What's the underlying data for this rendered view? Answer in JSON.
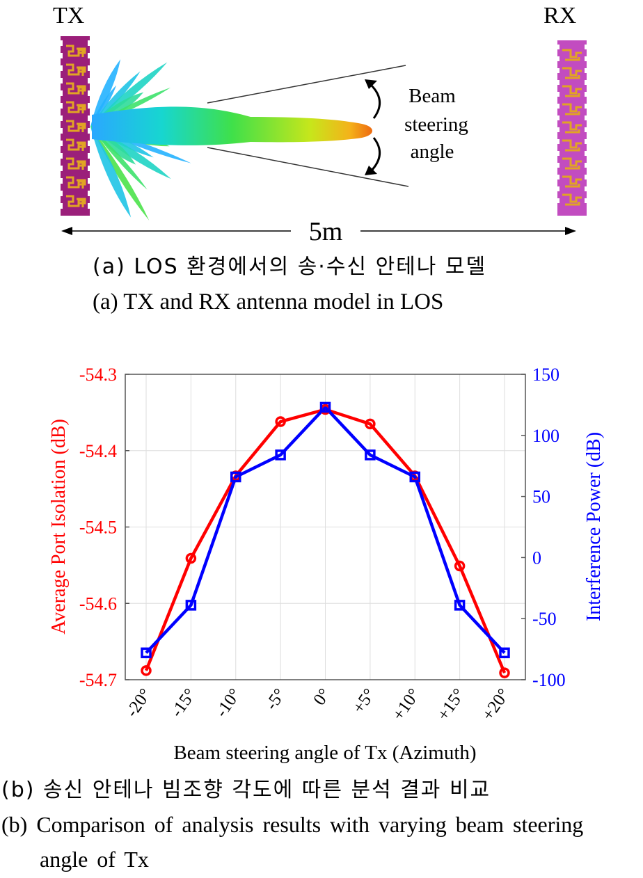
{
  "diagram": {
    "tx_label": "TX",
    "rx_label": "RX",
    "beam_label_lines": [
      "Beam",
      "steering",
      "angle"
    ],
    "distance_label": "5m"
  },
  "captions": {
    "a_ko": "(a) LOS 환경에서의 송·수신 안테나 모델",
    "a_en": "(a) TX and RX antenna model in LOS",
    "b_ko": "(b) 송신 안테나 빔조향 각도에 따른 분석 결과 비교",
    "b_en_line1": "(b) Comparison of analysis results with varying beam steering",
    "b_en_line2": "angle of Tx"
  },
  "colors": {
    "left_series": "#ff0000",
    "right_series": "#0000ff",
    "grid": "#dedede",
    "tx_board": "#9b1f7a",
    "rx_board": "#c24cc0",
    "trace": "#e1a424"
  },
  "chart_data": {
    "type": "line",
    "categories": [
      "-20°",
      "-15°",
      "-10°",
      "-5°",
      "0°",
      "+5°",
      "+10°",
      "+15°",
      "+20°"
    ],
    "xlabel": "Beam steering angle of Tx (Azimuth)",
    "y_left": {
      "label": "Average Port Isolation (dB)",
      "lim": [
        -54.7,
        -54.3
      ],
      "ticks": [
        "-54.3",
        "-54.4",
        "-54.5",
        "-54.6",
        "-54.7"
      ],
      "tick_values": [
        -54.3,
        -54.4,
        -54.5,
        -54.6,
        -54.7
      ]
    },
    "y_right": {
      "label": "Interference Power (dB)",
      "lim": [
        -100,
        150
      ],
      "ticks": [
        "150",
        "100",
        "50",
        "0",
        "-50",
        "-100"
      ],
      "tick_values": [
        150,
        100,
        50,
        0,
        -50,
        -100
      ]
    },
    "grid": true,
    "series": [
      {
        "axis": "left",
        "marker": "circle",
        "color": "#ff0000",
        "values": [
          -54.688,
          -54.541,
          -54.433,
          -54.362,
          -54.346,
          -54.365,
          -54.433,
          -54.551,
          -54.691
        ]
      },
      {
        "axis": "right",
        "marker": "square",
        "color": "#0000ff",
        "values": [
          -78,
          -39,
          66,
          84,
          123,
          84,
          66,
          -39,
          -78
        ]
      }
    ]
  }
}
